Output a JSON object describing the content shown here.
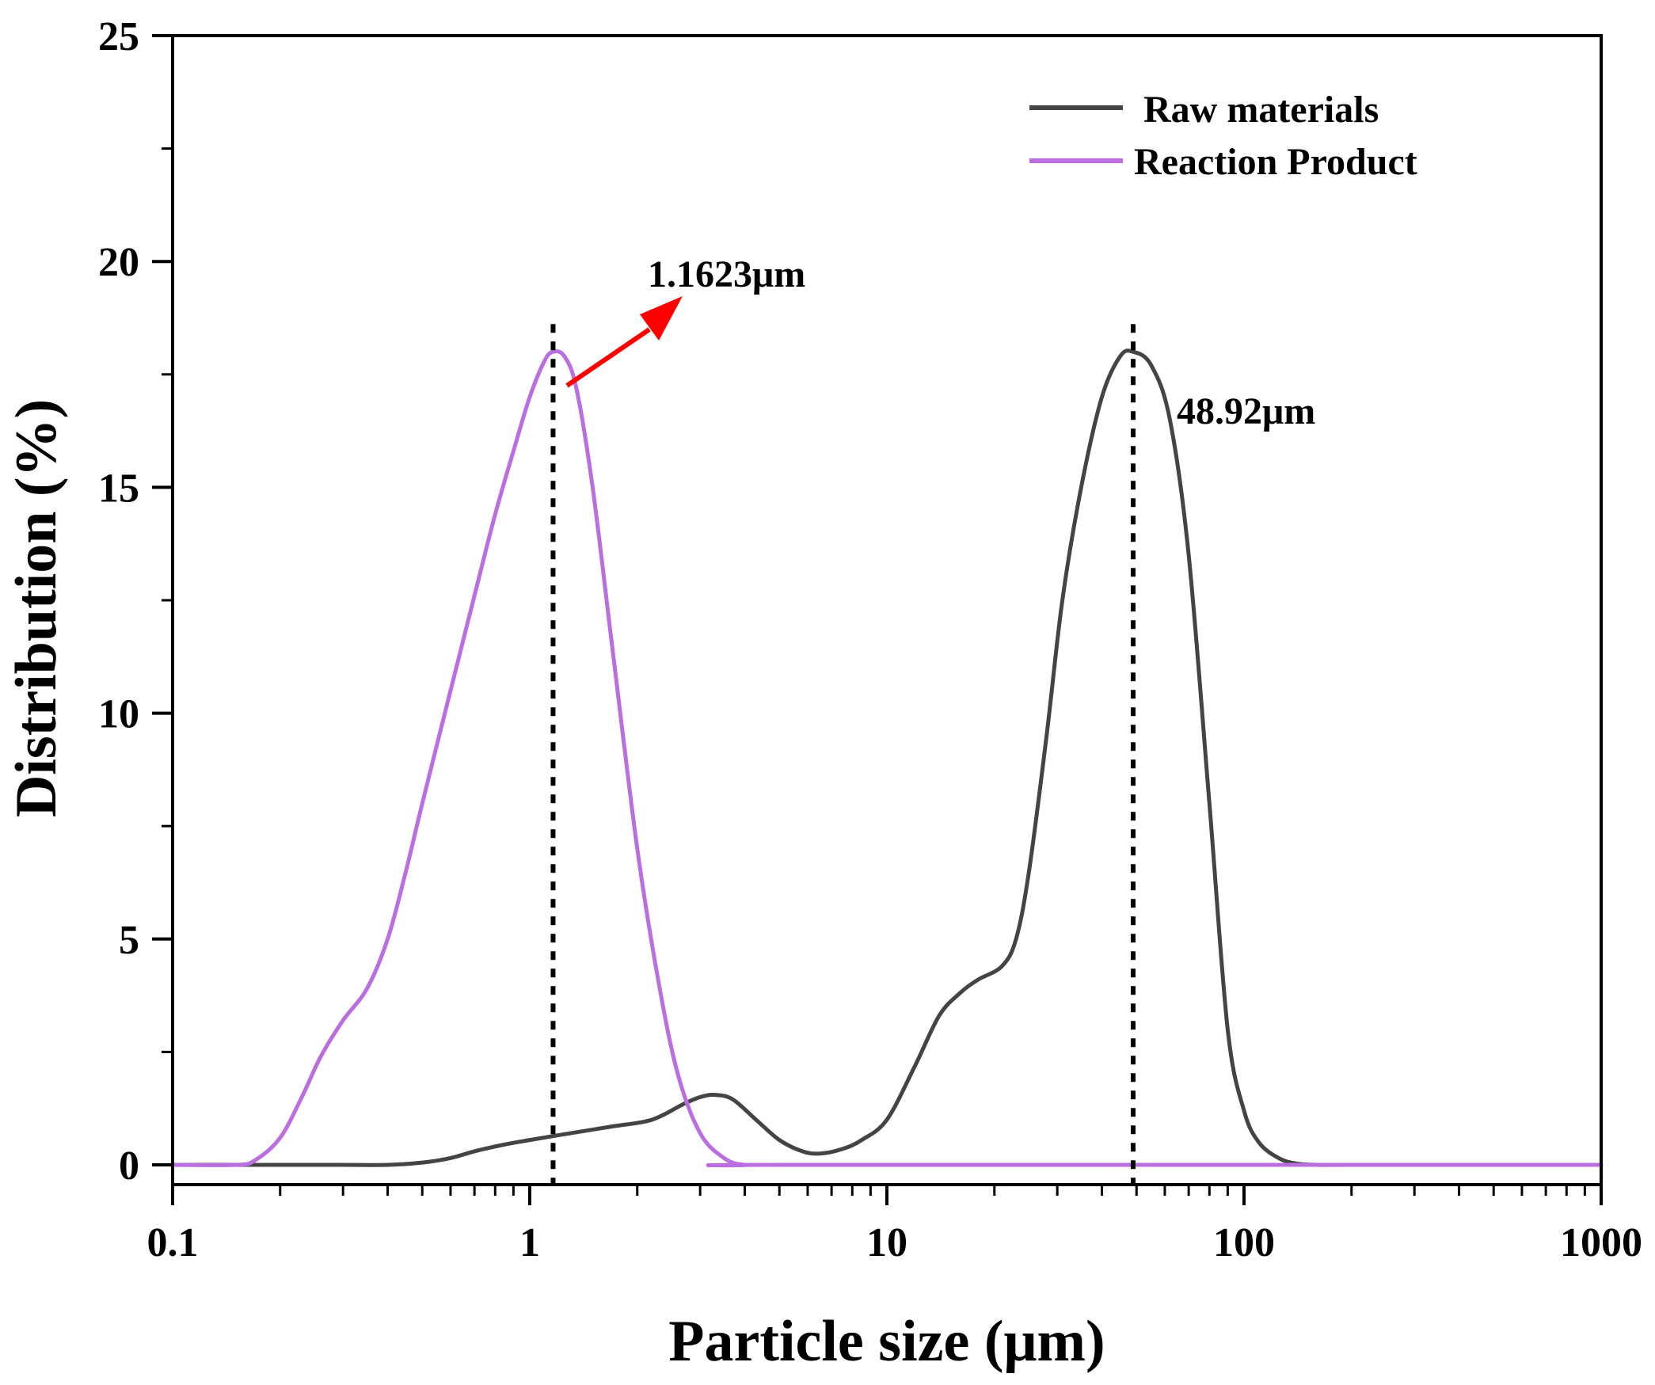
{
  "chart_data": {
    "type": "line",
    "xscale": "log",
    "xlabel": "Particle size (μm)",
    "ylabel": "Distribution (%)",
    "xlim": [
      0.1,
      1000
    ],
    "ylim": [
      0,
      25
    ],
    "x_ticks": [
      0.1,
      1,
      10,
      100,
      1000
    ],
    "x_tick_labels": [
      "0.1",
      "1",
      "10",
      "100",
      "1000"
    ],
    "y_ticks": [
      0,
      5,
      10,
      15,
      20,
      25
    ],
    "y_tick_labels": [
      "0",
      "5",
      "10",
      "15",
      "20",
      "25"
    ],
    "legend_position": "top-right",
    "series": [
      {
        "name": "Raw materials",
        "color": "#444444",
        "points": [
          [
            0.1,
            0
          ],
          [
            0.2,
            0
          ],
          [
            0.3,
            0
          ],
          [
            0.4,
            0
          ],
          [
            0.5,
            0.05
          ],
          [
            0.6,
            0.15
          ],
          [
            0.7,
            0.3
          ],
          [
            0.85,
            0.45
          ],
          [
            1.0,
            0.55
          ],
          [
            1.3,
            0.7
          ],
          [
            1.7,
            0.85
          ],
          [
            2.2,
            1.0
          ],
          [
            2.7,
            1.35
          ],
          [
            3.0,
            1.5
          ],
          [
            3.3,
            1.55
          ],
          [
            3.7,
            1.45
          ],
          [
            4.3,
            1.0
          ],
          [
            5.0,
            0.55
          ],
          [
            5.8,
            0.3
          ],
          [
            6.5,
            0.25
          ],
          [
            7.5,
            0.35
          ],
          [
            8.5,
            0.55
          ],
          [
            10,
            1.0
          ],
          [
            12,
            2.2
          ],
          [
            14,
            3.3
          ],
          [
            16,
            3.8
          ],
          [
            18,
            4.1
          ],
          [
            21,
            4.4
          ],
          [
            23,
            5.0
          ],
          [
            25,
            6.5
          ],
          [
            28,
            9.5
          ],
          [
            31,
            12.5
          ],
          [
            35,
            15.0
          ],
          [
            40,
            17.0
          ],
          [
            45,
            17.9
          ],
          [
            48.92,
            18.0
          ],
          [
            55,
            17.7
          ],
          [
            62,
            16.5
          ],
          [
            70,
            13.5
          ],
          [
            80,
            8.0
          ],
          [
            90,
            3.0
          ],
          [
            100,
            1.2
          ],
          [
            110,
            0.5
          ],
          [
            125,
            0.15
          ],
          [
            140,
            0.03
          ],
          [
            160,
            0
          ],
          [
            200,
            0
          ],
          [
            1000,
            0
          ]
        ]
      },
      {
        "name": "Reaction Product",
        "color": "#bb6ee0",
        "points": [
          [
            0.1,
            0
          ],
          [
            0.15,
            0
          ],
          [
            0.17,
            0.1
          ],
          [
            0.2,
            0.6
          ],
          [
            0.23,
            1.5
          ],
          [
            0.26,
            2.4
          ],
          [
            0.3,
            3.2
          ],
          [
            0.35,
            3.9
          ],
          [
            0.4,
            5.0
          ],
          [
            0.45,
            6.5
          ],
          [
            0.5,
            8.0
          ],
          [
            0.6,
            10.5
          ],
          [
            0.7,
            12.6
          ],
          [
            0.8,
            14.4
          ],
          [
            0.9,
            15.8
          ],
          [
            1.0,
            17.0
          ],
          [
            1.1,
            17.8
          ],
          [
            1.1623,
            18.0
          ],
          [
            1.25,
            17.9
          ],
          [
            1.35,
            17.2
          ],
          [
            1.5,
            15.0
          ],
          [
            1.7,
            11.5
          ],
          [
            2.0,
            7.0
          ],
          [
            2.3,
            4.0
          ],
          [
            2.6,
            2.0
          ],
          [
            3.0,
            0.7
          ],
          [
            3.5,
            0.15
          ],
          [
            4.0,
            0
          ],
          [
            5.0,
            0
          ],
          [
            1000,
            0
          ]
        ]
      }
    ],
    "annotations": [
      {
        "text": "1.1623μm",
        "x": 1.1623,
        "y": 18.0,
        "color": "#ff0000"
      },
      {
        "text": "48.92μm",
        "x": 48.92,
        "y": 18.0
      }
    ]
  }
}
